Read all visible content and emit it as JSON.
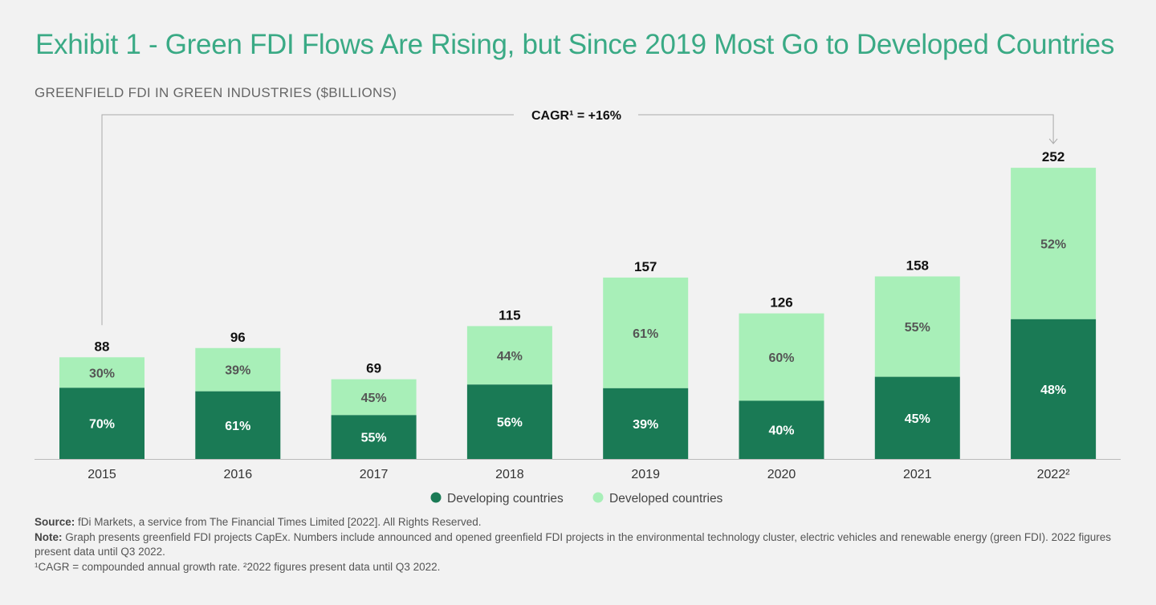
{
  "title": "Exhibit 1 - Green FDI Flows Are Rising, but Since 2019 Most Go to Developed Countries",
  "colors": {
    "title": "#3aaa85",
    "developing": "#1a7a55",
    "developed": "#a8efb8"
  },
  "chart_data": {
    "type": "bar",
    "stacked": true,
    "title": "GREENFIELD FDI IN GREEN INDUSTRIES ($BILLIONS)",
    "categories": [
      "2015",
      "2016",
      "2017",
      "2018",
      "2019",
      "2020",
      "2021",
      "2022²"
    ],
    "totals": [
      88,
      96,
      69,
      115,
      157,
      126,
      158,
      252
    ],
    "total_labels": [
      "88",
      "96",
      "69",
      "115",
      "157",
      "126",
      "158",
      "252"
    ],
    "series": [
      {
        "name": "Developing countries",
        "color": "#1a7a55",
        "share_pct": [
          70,
          61,
          55,
          56,
          39,
          40,
          45,
          48
        ],
        "labels": [
          "70%",
          "61%",
          "55%",
          "56%",
          "39%",
          "40%",
          "45%",
          "48%"
        ]
      },
      {
        "name": "Developed countries",
        "color": "#a8efb8",
        "share_pct": [
          30,
          39,
          45,
          44,
          61,
          60,
          55,
          52
        ],
        "labels": [
          "30%",
          "39%",
          "45%",
          "44%",
          "61%",
          "60%",
          "55%",
          "52%"
        ]
      }
    ],
    "ylim": [
      0,
      260
    ],
    "grid": false,
    "legend": "bottom",
    "annotation": "CAGR¹ = +16%"
  },
  "notes": {
    "source_label": "Source:",
    "source": " fDi Markets, a service from The Financial Times Limited [2022]. All Rights Reserved.",
    "note_label": "Note:",
    "note": " Graph presents greenfield FDI projects CapEx. Numbers include announced and opened greenfield FDI projects in the environmental technology cluster, electric vehicles and renewable energy (green FDI). 2022 figures present data until Q3 2022.",
    "footnote": "¹CAGR = compounded annual growth rate. ²2022 figures present data until Q3 2022."
  }
}
